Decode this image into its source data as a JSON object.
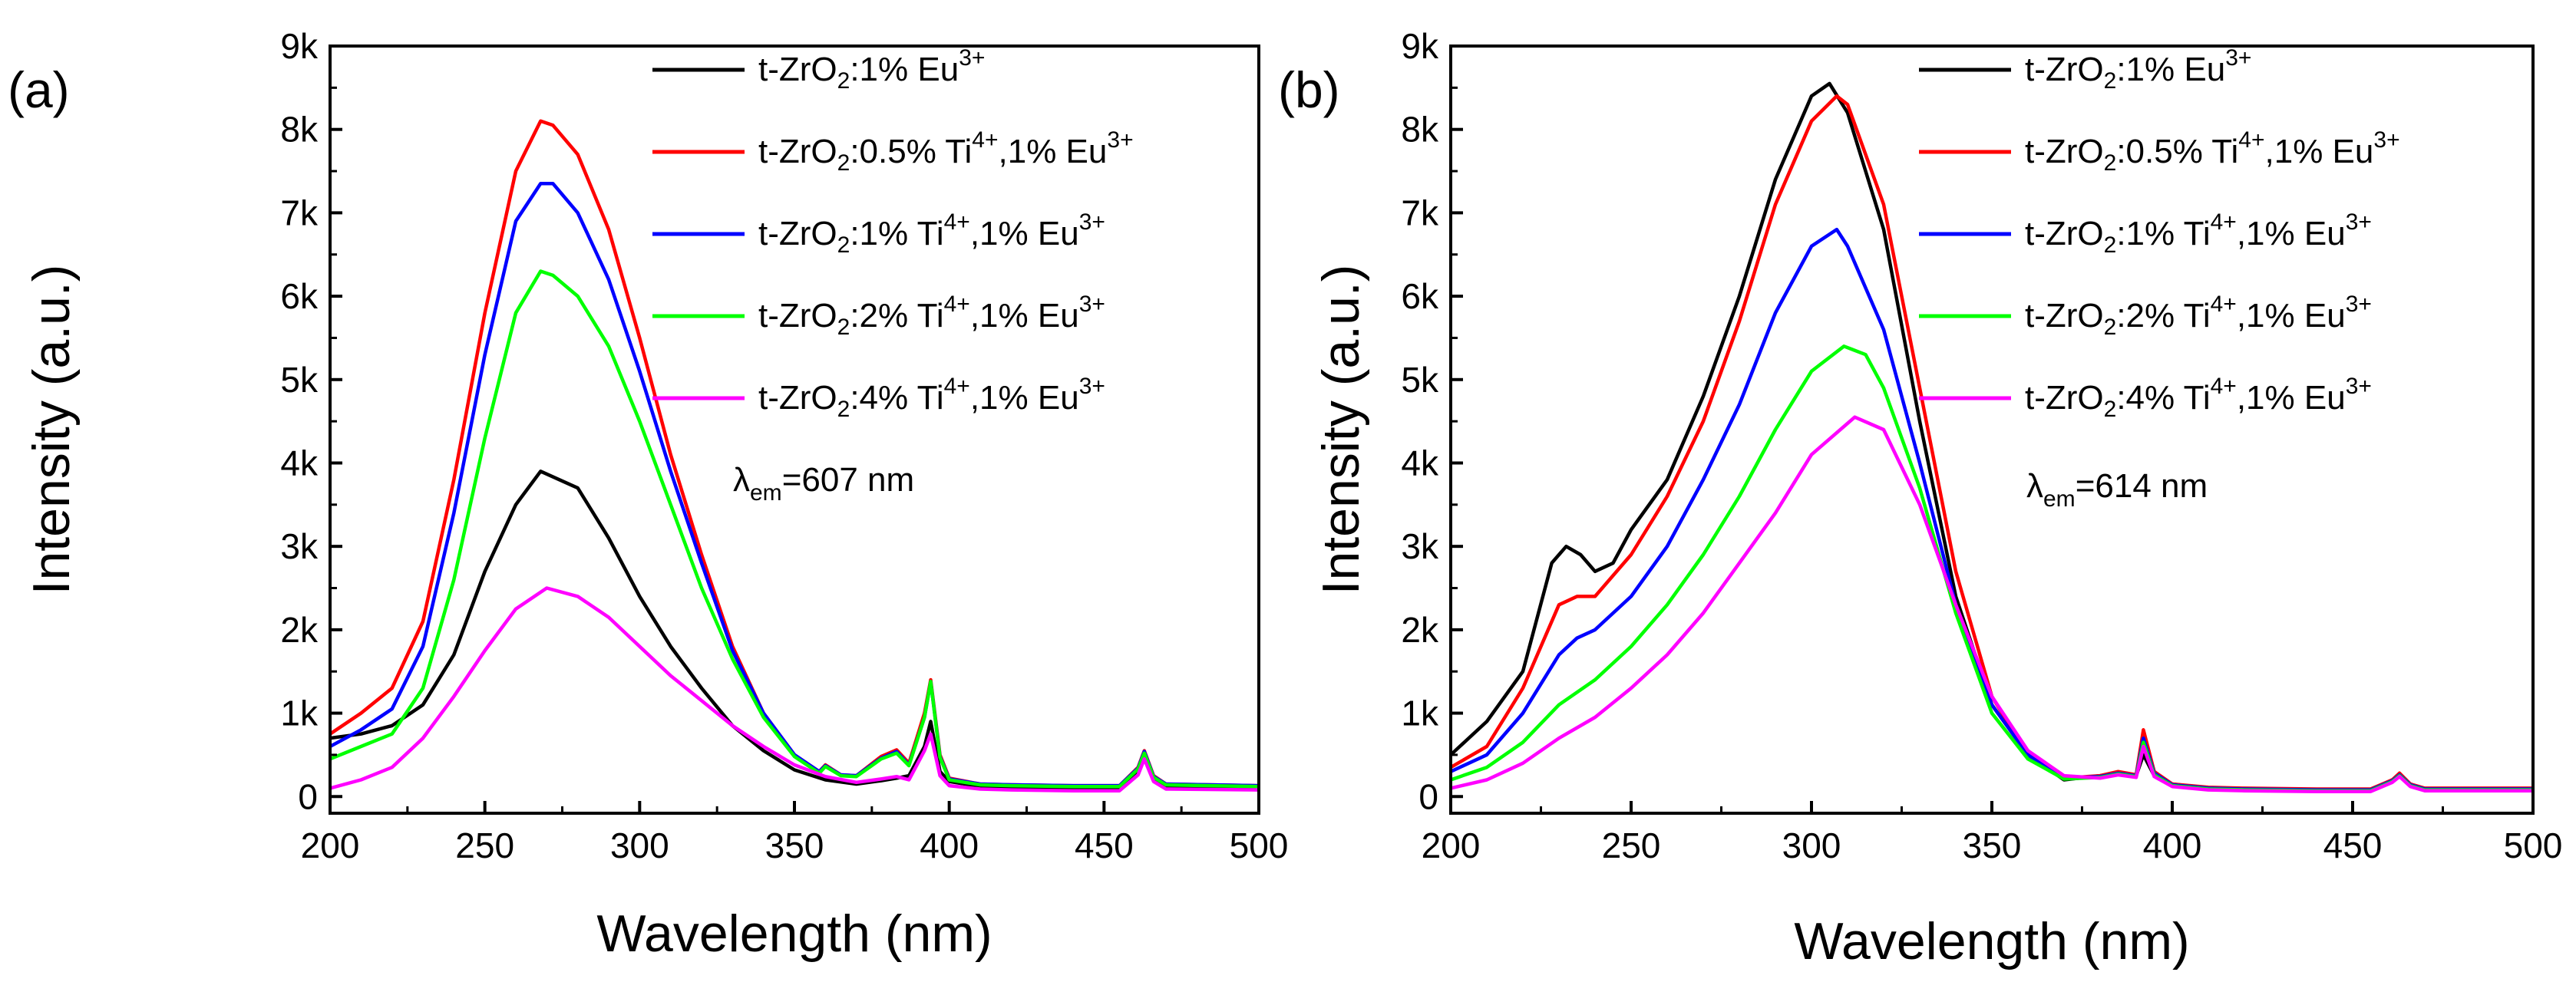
{
  "chart_data": [
    {
      "type": "line",
      "panel_label": "(a)",
      "xlabel": "Wavelength (nm)",
      "ylabel": "Intensity (a.u.)",
      "xlim": [
        200,
        500
      ],
      "ylim": [
        -200,
        9000
      ],
      "xticks": [
        200,
        250,
        300,
        350,
        400,
        450,
        500
      ],
      "xtick_labels": [
        "200",
        "250",
        "300",
        "350",
        "400",
        "450",
        "500"
      ],
      "yticks": [
        0,
        1000,
        2000,
        3000,
        4000,
        5000,
        6000,
        7000,
        8000,
        9000
      ],
      "ytick_labels": [
        "0",
        "1k",
        "2k",
        "3k",
        "4k",
        "5k",
        "6k",
        "7k",
        "8k",
        "9k"
      ],
      "annotation": {
        "symbol": "λ",
        "sub": "em",
        "text": "=607 nm"
      },
      "legend_position": "top-right",
      "series": [
        {
          "name": "t-ZrO2:1% Eu3+",
          "color": "#000000",
          "label": {
            "pre": "t-ZrO",
            "s1": "2",
            "mid": ":1% Eu",
            "s2": "3+",
            "tail": "",
            "s3": ""
          },
          "x": [
            200,
            210,
            220,
            230,
            240,
            250,
            260,
            268,
            280,
            290,
            300,
            310,
            320,
            330,
            340,
            350,
            360,
            370,
            378,
            383,
            387,
            392,
            394,
            397,
            400,
            410,
            420,
            440,
            455,
            461,
            463,
            466,
            470,
            500
          ],
          "y": [
            700,
            750,
            850,
            1100,
            1700,
            2700,
            3500,
            3900,
            3700,
            3100,
            2400,
            1800,
            1300,
            850,
            550,
            320,
            200,
            150,
            190,
            220,
            250,
            600,
            900,
            300,
            180,
            120,
            100,
            90,
            90,
            300,
            480,
            200,
            110,
            100
          ]
        },
        {
          "name": "t-ZrO2:0.5% Ti4+,1% Eu3+",
          "color": "#ff0000",
          "label": {
            "pre": "t-ZrO",
            "s1": "2",
            "mid": ":0.5% Ti",
            "s2": "4+",
            "tail": ",1% Eu",
            "s3": "3+"
          },
          "x": [
            200,
            210,
            220,
            230,
            240,
            250,
            260,
            268,
            272,
            280,
            290,
            300,
            310,
            320,
            330,
            340,
            350,
            358,
            360,
            365,
            370,
            378,
            383,
            387,
            392,
            394,
            397,
            400,
            410,
            420,
            440,
            455,
            461,
            463,
            466,
            470,
            500
          ],
          "y": [
            750,
            1000,
            1300,
            2100,
            3800,
            5800,
            7500,
            8100,
            8050,
            7700,
            6800,
            5500,
            4100,
            2900,
            1800,
            1000,
            500,
            300,
            380,
            260,
            250,
            480,
            560,
            400,
            1000,
            1400,
            500,
            220,
            150,
            140,
            130,
            130,
            350,
            550,
            250,
            150,
            130
          ]
        },
        {
          "name": "t-ZrO2:1% Ti4+,1% Eu3+",
          "color": "#0000ff",
          "label": {
            "pre": "t-ZrO",
            "s1": "2",
            "mid": ":1% Ti",
            "s2": "4+",
            "tail": ",1% Eu",
            "s3": "3+"
          },
          "x": [
            200,
            210,
            220,
            230,
            240,
            250,
            260,
            268,
            272,
            280,
            290,
            300,
            310,
            320,
            330,
            340,
            350,
            358,
            360,
            365,
            370,
            378,
            383,
            387,
            392,
            394,
            397,
            400,
            410,
            420,
            440,
            455,
            461,
            463,
            466,
            470,
            500
          ],
          "y": [
            600,
            800,
            1050,
            1800,
            3400,
            5300,
            6900,
            7350,
            7350,
            7000,
            6200,
            5100,
            3900,
            2800,
            1750,
            1000,
            500,
            300,
            370,
            260,
            250,
            460,
            540,
            380,
            950,
            1380,
            480,
            210,
            150,
            140,
            130,
            130,
            340,
            540,
            240,
            150,
            130
          ]
        },
        {
          "name": "t-ZrO2:2% Ti4+,1% Eu3+",
          "color": "#00ff00",
          "label": {
            "pre": "t-ZrO",
            "s1": "2",
            "mid": ":2% Ti",
            "s2": "4+",
            "tail": ",1% Eu",
            "s3": "3+"
          },
          "x": [
            200,
            210,
            220,
            230,
            240,
            250,
            260,
            268,
            272,
            280,
            290,
            300,
            310,
            320,
            330,
            340,
            350,
            358,
            360,
            365,
            370,
            378,
            383,
            387,
            392,
            394,
            397,
            400,
            410,
            420,
            440,
            455,
            461,
            463,
            466,
            470,
            500
          ],
          "y": [
            450,
            600,
            750,
            1300,
            2600,
            4300,
            5800,
            6300,
            6250,
            6000,
            5400,
            4500,
            3500,
            2500,
            1650,
            950,
            480,
            280,
            360,
            250,
            240,
            450,
            520,
            370,
            950,
            1380,
            470,
            200,
            140,
            130,
            120,
            120,
            330,
            520,
            230,
            140,
            120
          ]
        },
        {
          "name": "t-ZrO2:4% Ti4+,1% Eu3+",
          "color": "#ff00ff",
          "label": {
            "pre": "t-ZrO",
            "s1": "2",
            "mid": ":4% Ti",
            "s2": "4+",
            "tail": ",1% Eu",
            "s3": "3+"
          },
          "x": [
            200,
            210,
            220,
            230,
            240,
            250,
            260,
            270,
            280,
            290,
            300,
            310,
            320,
            330,
            340,
            350,
            360,
            370,
            378,
            383,
            387,
            392,
            394,
            397,
            400,
            410,
            420,
            440,
            455,
            461,
            463,
            466,
            470,
            500
          ],
          "y": [
            100,
            200,
            350,
            700,
            1200,
            1750,
            2250,
            2500,
            2400,
            2150,
            1800,
            1450,
            1150,
            850,
            600,
            380,
            240,
            170,
            210,
            240,
            200,
            550,
            750,
            250,
            130,
            90,
            80,
            70,
            70,
            260,
            450,
            180,
            90,
            80
          ]
        }
      ]
    },
    {
      "type": "line",
      "panel_label": "(b)",
      "xlabel": "Wavelength (nm)",
      "ylabel": "Intensity (a.u.)",
      "xlim": [
        200,
        500
      ],
      "ylim": [
        -200,
        9000
      ],
      "xticks": [
        200,
        250,
        300,
        350,
        400,
        450,
        500
      ],
      "xtick_labels": [
        "200",
        "250",
        "300",
        "350",
        "400",
        "450",
        "500"
      ],
      "yticks": [
        0,
        1000,
        2000,
        3000,
        4000,
        5000,
        6000,
        7000,
        8000,
        9000
      ],
      "ytick_labels": [
        "0",
        "1k",
        "2k",
        "3k",
        "4k",
        "5k",
        "6k",
        "7k",
        "8k",
        "9k"
      ],
      "annotation": {
        "symbol": "λ",
        "sub": "em",
        "text": "=614 nm"
      },
      "legend_position": "top-right",
      "series": [
        {
          "name": "t-ZrO2:1% Eu3+",
          "color": "#000000",
          "label": {
            "pre": "t-ZrO",
            "s1": "2",
            "mid": ":1% Eu",
            "s2": "3+",
            "tail": "",
            "s3": ""
          },
          "x": [
            200,
            210,
            220,
            228,
            232,
            236,
            240,
            245,
            250,
            260,
            270,
            280,
            290,
            300,
            305,
            310,
            320,
            330,
            340,
            350,
            360,
            370,
            380,
            385,
            390,
            392,
            395,
            400,
            410,
            420,
            440,
            455,
            461,
            463,
            466,
            470,
            500
          ],
          "y": [
            500,
            900,
            1500,
            2800,
            3000,
            2900,
            2700,
            2800,
            3200,
            3800,
            4800,
            6000,
            7400,
            8400,
            8550,
            8200,
            6800,
            4500,
            2400,
            1100,
            500,
            200,
            250,
            280,
            250,
            500,
            250,
            150,
            100,
            90,
            80,
            80,
            200,
            250,
            150,
            90,
            90
          ]
        },
        {
          "name": "t-ZrO2:0.5% Ti4+,1% Eu3+",
          "color": "#ff0000",
          "label": {
            "pre": "t-ZrO",
            "s1": "2",
            "mid": ":0.5% Ti",
            "s2": "4+",
            "tail": ",1% Eu",
            "s3": "3+"
          },
          "x": [
            200,
            210,
            220,
            230,
            235,
            240,
            250,
            260,
            270,
            280,
            290,
            300,
            307,
            310,
            320,
            330,
            340,
            350,
            360,
            370,
            380,
            385,
            390,
            392,
            395,
            400,
            410,
            420,
            440,
            455,
            461,
            463,
            466,
            470,
            500
          ],
          "y": [
            350,
            600,
            1300,
            2300,
            2400,
            2400,
            2900,
            3600,
            4500,
            5700,
            7100,
            8100,
            8400,
            8300,
            7100,
            4900,
            2700,
            1200,
            500,
            220,
            250,
            300,
            260,
            800,
            300,
            150,
            110,
            100,
            90,
            90,
            200,
            280,
            150,
            100,
            100
          ]
        },
        {
          "name": "t-ZrO2:1% Ti4+,1% Eu3+",
          "color": "#0000ff",
          "label": {
            "pre": "t-ZrO",
            "s1": "2",
            "mid": ":1% Ti",
            "s2": "4+",
            "tail": ",1% Eu",
            "s3": "3+"
          },
          "x": [
            200,
            210,
            220,
            230,
            235,
            240,
            250,
            260,
            270,
            280,
            290,
            300,
            307,
            310,
            320,
            330,
            340,
            350,
            360,
            370,
            380,
            385,
            390,
            392,
            395,
            400,
            410,
            420,
            440,
            455,
            461,
            463,
            466,
            470,
            500
          ],
          "y": [
            300,
            500,
            1000,
            1700,
            1900,
            2000,
            2400,
            3000,
            3800,
            4700,
            5800,
            6600,
            6800,
            6600,
            5600,
            4000,
            2300,
            1100,
            500,
            220,
            240,
            280,
            250,
            700,
            280,
            140,
            100,
            90,
            80,
            80,
            190,
            260,
            140,
            90,
            90
          ]
        },
        {
          "name": "t-ZrO2:2% Ti4+,1% Eu3+",
          "color": "#00ff00",
          "label": {
            "pre": "t-ZrO",
            "s1": "2",
            "mid": ":2% Ti",
            "s2": "4+",
            "tail": ",1% Eu",
            "s3": "3+"
          },
          "x": [
            200,
            210,
            220,
            230,
            240,
            250,
            260,
            270,
            280,
            290,
            300,
            309,
            315,
            320,
            330,
            340,
            350,
            360,
            370,
            380,
            385,
            390,
            392,
            395,
            400,
            410,
            420,
            440,
            455,
            461,
            463,
            466,
            470,
            500
          ],
          "y": [
            200,
            350,
            650,
            1100,
            1400,
            1800,
            2300,
            2900,
            3600,
            4400,
            5100,
            5400,
            5300,
            4900,
            3700,
            2200,
            1000,
            450,
            210,
            230,
            270,
            240,
            650,
            260,
            130,
            90,
            80,
            70,
            70,
            180,
            250,
            130,
            80,
            80
          ]
        },
        {
          "name": "t-ZrO2:4% Ti4+,1% Eu3+",
          "color": "#ff00ff",
          "label": {
            "pre": "t-ZrO",
            "s1": "2",
            "mid": ":4% Ti",
            "s2": "4+",
            "tail": ",1% Eu",
            "s3": "3+"
          },
          "x": [
            200,
            210,
            220,
            230,
            240,
            250,
            260,
            270,
            280,
            290,
            300,
            312,
            320,
            330,
            340,
            350,
            360,
            370,
            380,
            385,
            390,
            392,
            395,
            400,
            410,
            420,
            440,
            455,
            461,
            463,
            466,
            470,
            500
          ],
          "y": [
            100,
            200,
            400,
            700,
            950,
            1300,
            1700,
            2200,
            2800,
            3400,
            4100,
            4550,
            4400,
            3500,
            2300,
            1200,
            550,
            250,
            220,
            260,
            230,
            600,
            240,
            120,
            80,
            70,
            60,
            60,
            170,
            240,
            120,
            70,
            70
          ]
        }
      ]
    }
  ]
}
